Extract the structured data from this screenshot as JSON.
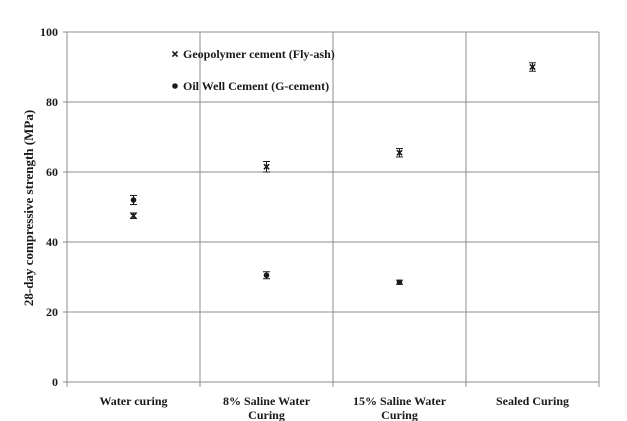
{
  "chart_data": {
    "type": "scatter",
    "ylabel": "28-day compressive strength (MPa)",
    "xlabel": "",
    "ylim": [
      0,
      100
    ],
    "yticks": [
      0,
      20,
      40,
      60,
      80,
      100
    ],
    "grid": true,
    "legend_position": "top-left",
    "categories": [
      [
        "Water curing"
      ],
      [
        "8% Saline Water",
        "Curing"
      ],
      [
        "15% Saline Water",
        "Curing"
      ],
      [
        "Sealed Curing"
      ]
    ],
    "series": [
      {
        "name": "Geopolymer cement (Fly-ash)",
        "marker": "x-mark",
        "values": [
          47.5,
          61.5,
          65.5,
          90.0
        ],
        "error": [
          0.8,
          1.5,
          1.2,
          1.2
        ]
      },
      {
        "name": "Oil Well Cement (G-cement)",
        "marker": "dot",
        "values": [
          52.0,
          30.5,
          28.5,
          null
        ],
        "error": [
          1.3,
          1.0,
          0.6,
          null
        ]
      }
    ],
    "colors": {
      "marker": "#1a1a1a",
      "grid": "#8c8c8c",
      "axis": "#8c8c8c",
      "text": "#1a1a1a"
    }
  }
}
